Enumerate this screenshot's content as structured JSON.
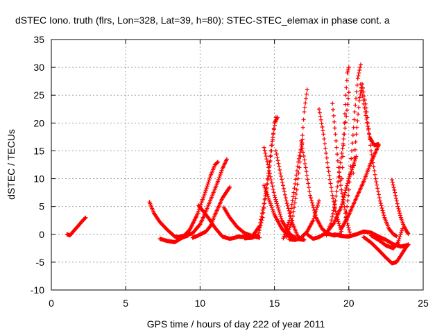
{
  "chart_data": {
    "type": "scatter",
    "title": "dSTEC Iono. truth (flrs, Lon=328, Lat=39, h=80): STEC-STEC_elemax in phase cont. a",
    "xlabel": "GPS time / hours of day 222 of year 2011",
    "ylabel": "dSTEC  / TECUs",
    "xlim": [
      0,
      25
    ],
    "ylim": [
      -10,
      35
    ],
    "xticks": [
      0,
      5,
      10,
      15,
      20,
      25
    ],
    "yticks": [
      -10,
      -5,
      0,
      5,
      10,
      15,
      20,
      25,
      30,
      35
    ],
    "xtick_labels": [
      "0",
      "5",
      "10",
      "15",
      "20",
      "25"
    ],
    "ytick_labels": [
      "-10",
      "-5",
      "0",
      "5",
      "10",
      "15",
      "20",
      "25",
      "30",
      "35"
    ],
    "grid": true,
    "marker": "+",
    "marker_color": "#ff0000",
    "series": [
      {
        "x": [
          1.05,
          1.25,
          1.5,
          1.8,
          2.05,
          2.3
        ],
        "y": [
          0,
          -0.2,
          0.6,
          1.5,
          2.3,
          3
        ]
      },
      {
        "x": [
          6.6,
          6.9,
          7.3,
          7.8,
          8.3,
          8.8,
          9.2
        ],
        "y": [
          5.8,
          3.8,
          2.2,
          0.8,
          -0.4,
          -0.6,
          -0.2
        ]
      },
      {
        "x": [
          7.3,
          7.8,
          8.3,
          8.8,
          9.3,
          9.8,
          10.3,
          10.7,
          11.0,
          11.2
        ],
        "y": [
          -0.8,
          -1.2,
          -1.4,
          -0.6,
          0.8,
          3.5,
          7.2,
          10.5,
          12.5,
          13.0
        ]
      },
      {
        "x": [
          8.5,
          9.0,
          9.5,
          10.0,
          10.3,
          10.6,
          10.9,
          11.2,
          11.5,
          11.8
        ],
        "y": [
          -0.5,
          -0.2,
          0.2,
          1.8,
          3.5,
          5.5,
          7.5,
          9.5,
          11.8,
          13.5
        ]
      },
      {
        "x": [
          9.5,
          9.8,
          10.1,
          10.4,
          10.7,
          11.0,
          11.5,
          12.0
        ],
        "y": [
          -0.6,
          -0.3,
          0.1,
          0.5,
          1.5,
          3.5,
          6.5,
          8.5
        ]
      },
      {
        "x": [
          9.9,
          10.2,
          10.6,
          11.0,
          11.5,
          12.0,
          12.5
        ],
        "y": [
          5.2,
          4.2,
          2.8,
          1.2,
          -0.4,
          -0.8,
          -0.5
        ]
      },
      {
        "x": [
          11.6,
          12.0,
          12.5,
          13.0,
          13.5,
          14.0
        ],
        "y": [
          4.8,
          3.0,
          1.3,
          0.2,
          -0.3,
          -0.6
        ]
      },
      {
        "x": [
          12.5,
          13.0,
          13.5,
          14.0,
          14.3,
          14.6,
          14.8,
          15.0,
          15.2
        ],
        "y": [
          -0.4,
          -0.5,
          -0.4,
          1.5,
          5.5,
          10.5,
          15.0,
          20.0,
          21.0
        ]
      },
      {
        "x": [
          13.0,
          13.5,
          13.9,
          14.2,
          14.5,
          14.8,
          15.1
        ],
        "y": [
          -0.7,
          -0.6,
          -0.2,
          3.0,
          9.0,
          16.0,
          21.0
        ]
      },
      {
        "x": [
          14.3,
          14.6,
          15.0,
          15.5,
          16.0,
          16.5,
          17.0
        ],
        "y": [
          15.6,
          12.0,
          7.0,
          2.5,
          0.1,
          -0.8,
          -1.0
        ]
      },
      {
        "x": [
          14.3,
          14.6,
          15.0,
          15.5,
          16.0,
          16.5
        ],
        "y": [
          8.8,
          6.5,
          3.5,
          1.0,
          -0.5,
          -0.8
        ]
      },
      {
        "x": [
          15.1,
          15.4,
          15.8,
          16.2,
          16.6,
          17.0
        ],
        "y": [
          15.0,
          11.0,
          6.0,
          2.0,
          -0.5,
          -1.0
        ]
      },
      {
        "x": [
          15.8,
          16.2,
          16.5,
          16.8,
          17.0,
          17.2
        ],
        "y": [
          -0.5,
          2.5,
          8.0,
          15.0,
          22.0,
          26.0
        ]
      },
      {
        "x": [
          15.6,
          16.0,
          16.3,
          16.6,
          16.9
        ],
        "y": [
          -0.7,
          2.5,
          7.5,
          13.0,
          17.0
        ]
      },
      {
        "x": [
          16.8,
          17.1,
          17.4,
          17.8,
          18.2,
          18.6,
          19.0,
          19.5
        ],
        "y": [
          16.8,
          12.0,
          7.0,
          3.0,
          1.0,
          0.1,
          -0.2,
          0.0
        ]
      },
      {
        "x": [
          16.0,
          16.4,
          16.8,
          17.2,
          17.6,
          18.0
        ],
        "y": [
          -0.9,
          -1.0,
          -0.6,
          0.5,
          2.5,
          6.0
        ]
      },
      {
        "x": [
          17.2,
          17.6,
          18.0,
          18.5,
          19.0,
          19.5,
          20.0,
          20.5
        ],
        "y": [
          0.0,
          -0.8,
          -0.5,
          0.3,
          2.0,
          5.0,
          10.0,
          14.0
        ]
      },
      {
        "x": [
          18.0,
          18.3,
          18.6,
          18.9,
          19.2,
          19.5
        ],
        "y": [
          22.5,
          18.0,
          12.0,
          7.0,
          3.0,
          0.5
        ]
      },
      {
        "x": [
          18.9,
          19.1,
          19.3,
          19.5,
          19.7,
          19.9,
          20.1
        ],
        "y": [
          23.5,
          18.0,
          12.0,
          8.0,
          5.0,
          2.0,
          0.0
        ]
      },
      {
        "x": [
          19.5,
          19.6,
          19.7,
          19.8,
          19.9,
          20.0
        ],
        "y": [
          8.0,
          14.0,
          20.0,
          25.0,
          29.0,
          30.0
        ]
      },
      {
        "x": [
          18.5,
          18.8,
          19.1,
          19.4,
          19.7,
          20.0
        ],
        "y": [
          -0.2,
          2.0,
          6.0,
          12.0,
          18.0,
          25.5
        ]
      },
      {
        "x": [
          20.3,
          20.5,
          20.7,
          20.9,
          21.2,
          21.5,
          21.8,
          22.1,
          22.4,
          22.7,
          23.0,
          23.2
        ],
        "y": [
          11.0,
          18.0,
          24.0,
          27.0,
          22.0,
          15.0,
          10.0,
          6.0,
          3.0,
          1.0,
          0.0,
          -0.3
        ]
      },
      {
        "x": [
          19.8,
          20.0,
          20.2,
          20.4,
          20.6,
          20.8
        ],
        "y": [
          3.0,
          8.0,
          15.0,
          22.0,
          28.0,
          30.5
        ]
      },
      {
        "x": [
          20.8,
          21.1,
          21.4,
          21.7,
          22.0
        ],
        "y": [
          27.0,
          22.0,
          17.5,
          16.0,
          16.2
        ]
      },
      {
        "x": [
          19.5,
          20.0,
          20.5,
          21.0,
          21.5,
          22.0
        ],
        "y": [
          1.0,
          3.5,
          6.5,
          9.5,
          13.0,
          16.0
        ]
      },
      {
        "x": [
          19.0,
          19.5,
          20.0,
          20.5,
          21.0,
          21.5,
          22.0,
          22.5,
          23.0,
          23.5,
          24.0
        ],
        "y": [
          0.0,
          -0.3,
          -0.4,
          0.0,
          0.5,
          0.3,
          -0.4,
          -1.0,
          -1.8,
          -2.2,
          -1.9
        ]
      },
      {
        "x": [
          21.0,
          21.5,
          22.0,
          22.5,
          22.9,
          23.2,
          23.5,
          23.8,
          24.0
        ],
        "y": [
          -0.5,
          -1.5,
          -2.8,
          -4.2,
          -5.2,
          -5.0,
          -3.8,
          -2.5,
          -1.8
        ]
      },
      {
        "x": [
          21.5,
          22.0,
          22.5,
          23.0,
          23.3,
          23.6
        ],
        "y": [
          -0.2,
          -1.0,
          -2.0,
          -2.5,
          -1.5,
          1.0
        ]
      },
      {
        "x": [
          22.9,
          23.1,
          23.3,
          23.5,
          23.7,
          23.9,
          24.0
        ],
        "y": [
          9.8,
          7.5,
          5.0,
          3.0,
          1.5,
          0.5,
          0.1
        ]
      }
    ]
  }
}
